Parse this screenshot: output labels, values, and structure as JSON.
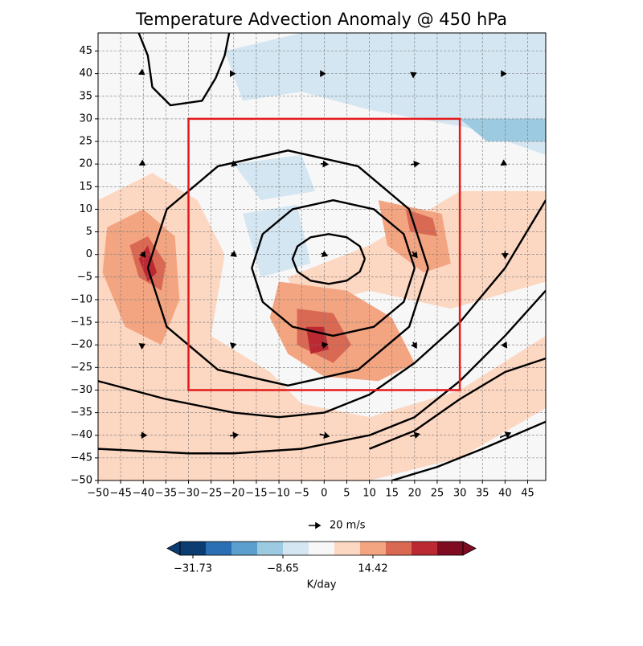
{
  "chart_data": {
    "type": "contour_map",
    "title": "Temperature Advection Anomaly @ 450 hPa",
    "xlim": [
      -50,
      49
    ],
    "ylim": [
      -50,
      49
    ],
    "xticks": [
      {
        "value": -50,
        "label": "−50"
      },
      {
        "value": -45,
        "label": "−45"
      },
      {
        "value": -40,
        "label": "−40"
      },
      {
        "value": -35,
        "label": "−35"
      },
      {
        "value": -30,
        "label": "−30"
      },
      {
        "value": -25,
        "label": "−25"
      },
      {
        "value": -20,
        "label": "−20"
      },
      {
        "value": -15,
        "label": "−15"
      },
      {
        "value": -10,
        "label": "−10"
      },
      {
        "value": -5,
        "label": "−5"
      },
      0,
      5,
      10,
      15,
      20,
      25,
      30,
      35,
      40,
      45
    ],
    "yticks": [
      {
        "value": -50,
        "label": "−50"
      },
      {
        "value": -45,
        "label": "−45"
      },
      {
        "value": -40,
        "label": "−40"
      },
      {
        "value": -35,
        "label": "−35"
      },
      {
        "value": -30,
        "label": "−30"
      },
      {
        "value": -25,
        "label": "−25"
      },
      {
        "value": -20,
        "label": "−20"
      },
      {
        "value": -15,
        "label": "−15"
      },
      {
        "value": -10,
        "label": "−10"
      },
      {
        "value": -5,
        "label": "−5"
      },
      0,
      5,
      10,
      15,
      20,
      25,
      30,
      35,
      40,
      45
    ],
    "grid": true,
    "background": "#f7f7f7",
    "patches": [
      {
        "color": "#fcd7c2",
        "x": [
          -50,
          -38,
          -28,
          -22,
          -25,
          -12,
          -5,
          10,
          30,
          49,
          49,
          30,
          10,
          -10,
          -30,
          -50
        ],
        "y": [
          12,
          18,
          12,
          0,
          -18,
          -26,
          -33,
          -36,
          -30,
          -18,
          -34,
          -45,
          -50,
          -50,
          -50,
          -50
        ]
      },
      {
        "color": "#fcd7c2",
        "x": [
          -8,
          10,
          30,
          49,
          49,
          28,
          10,
          -6
        ],
        "y": [
          -5,
          2,
          14,
          14,
          -6,
          -12,
          -8,
          -12
        ]
      },
      {
        "color": "#f3a582",
        "x": [
          -48,
          -40,
          -33,
          -32,
          -36,
          -44,
          -49
        ],
        "y": [
          6,
          10,
          4,
          -10,
          -20,
          -16,
          -4
        ]
      },
      {
        "color": "#da6954",
        "x": [
          -43,
          -39,
          -35,
          -36,
          -41
        ],
        "y": [
          2,
          4,
          -2,
          -8,
          -5
        ]
      },
      {
        "color": "#bb2a33",
        "x": [
          -41,
          -39,
          -37,
          -39
        ],
        "y": [
          -1,
          2,
          -4,
          -6
        ]
      },
      {
        "color": "#f3a582",
        "x": [
          -10,
          5,
          15,
          20,
          12,
          0,
          -8,
          -12
        ],
        "y": [
          -6,
          -8,
          -14,
          -24,
          -28,
          -27,
          -22,
          -14
        ]
      },
      {
        "color": "#da6954",
        "x": [
          -6,
          2,
          6,
          2,
          -6
        ],
        "y": [
          -12,
          -13,
          -20,
          -24,
          -20
        ]
      },
      {
        "color": "#bb2a33",
        "x": [
          -4,
          0,
          1,
          -3
        ],
        "y": [
          -16,
          -16,
          -21,
          -22
        ]
      },
      {
        "color": "#f3a582",
        "x": [
          12,
          26,
          28,
          22,
          14
        ],
        "y": [
          12,
          9,
          -2,
          -4,
          2
        ]
      },
      {
        "color": "#da6954",
        "x": [
          18,
          24,
          25,
          19
        ],
        "y": [
          10,
          8,
          4,
          5
        ]
      },
      {
        "color": "#d4e6f1",
        "x": [
          -22,
          -5,
          20,
          49,
          49,
          32,
          10,
          -5,
          -18
        ],
        "y": [
          45,
          49,
          49,
          49,
          22,
          28,
          32,
          36,
          34
        ]
      },
      {
        "color": "#d4e6f1",
        "x": [
          -20,
          -5,
          -2,
          -14
        ],
        "y": [
          20,
          22,
          14,
          12
        ]
      },
      {
        "color": "#d4e6f1",
        "x": [
          -18,
          -6,
          -3,
          -14
        ],
        "y": [
          9,
          11,
          -2,
          -5
        ]
      },
      {
        "color": "#9ccae1",
        "x": [
          30,
          49,
          49,
          36
        ],
        "y": [
          30,
          30,
          25,
          25
        ]
      }
    ],
    "contours": [
      {
        "x": [
          9,
          7.9,
          5,
          1,
          -3,
          -5.9,
          -7,
          -5.9,
          -3,
          1,
          5,
          7.9,
          9
        ],
        "y": [
          -1,
          1.8,
          3.8,
          4.5,
          3.8,
          1.8,
          -1,
          -3.8,
          -5.8,
          -6.5,
          -5.8,
          -3.8,
          -1
        ]
      },
      {
        "x": [
          20,
          17.6,
          11,
          2,
          -7,
          -13.6,
          -16,
          -13.6,
          -7,
          2,
          11,
          17.6,
          20
        ],
        "y": [
          -3,
          4.5,
          10,
          12,
          10,
          4.5,
          -3,
          -10.5,
          -16,
          -18,
          -16,
          -10.5,
          -3
        ]
      },
      {
        "x": [
          23,
          18.8,
          7.5,
          -8,
          -23.5,
          -34.8,
          -39,
          -34.8,
          -23.5,
          -8,
          7.5,
          18.8,
          23
        ],
        "y": [
          -3,
          10,
          19.5,
          23,
          19.5,
          10,
          -3,
          -16,
          -25.5,
          -29,
          -25.5,
          -16,
          -3
        ]
      },
      {
        "x": [
          -41,
          -39,
          -38,
          -34,
          -27,
          -24,
          -22,
          -21
        ],
        "y": [
          49,
          44,
          37,
          33,
          34,
          39,
          44,
          49
        ]
      },
      {
        "x": [
          -50,
          -35,
          -20,
          -10,
          0,
          10,
          20,
          30,
          40,
          49
        ],
        "y": [
          -28,
          -32,
          -35,
          -36,
          -35,
          -31,
          -24,
          -15,
          -3,
          12
        ]
      },
      {
        "x": [
          -50,
          -30,
          -20,
          -5,
          10,
          20,
          30,
          40,
          49
        ],
        "y": [
          -43,
          -44,
          -44,
          -43,
          -40,
          -36,
          -28,
          -18,
          -8
        ]
      },
      {
        "x": [
          10,
          20,
          30,
          40,
          49
        ],
        "y": [
          -43,
          -39,
          -32,
          -26,
          -23
        ]
      },
      {
        "x": [
          15,
          25,
          35,
          49
        ],
        "y": [
          -50,
          -47,
          -43,
          -37
        ]
      }
    ],
    "box": {
      "x": [
        -30,
        30
      ],
      "y": [
        -30,
        30
      ],
      "color": "#e41a1c"
    },
    "vectors": {
      "x": [
        -40,
        -40,
        -40,
        -40,
        -40,
        -20,
        -20,
        -20,
        -20,
        -20,
        0,
        0,
        0,
        0,
        0,
        20,
        20,
        20,
        20,
        20,
        40,
        40,
        40,
        40,
        40
      ],
      "y": [
        40,
        20,
        0,
        -20,
        -40,
        40,
        20,
        0,
        -20,
        -40,
        40,
        20,
        0,
        -20,
        -40,
        40,
        20,
        0,
        -20,
        -40,
        40,
        20,
        0,
        -20,
        -40
      ],
      "u": [
        3,
        5,
        6,
        4,
        10,
        3,
        10,
        8,
        6,
        14,
        2,
        12,
        10,
        10,
        16,
        4,
        14,
        8,
        6,
        16,
        2,
        4,
        0,
        4,
        18
      ],
      "v": [
        -2,
        -3,
        -8,
        2,
        0,
        0,
        -3,
        -6,
        2,
        2,
        0,
        -1,
        -4,
        2,
        -4,
        2,
        2,
        -10,
        -10,
        4,
        0,
        -2,
        -12,
        8,
        8
      ]
    },
    "quiver_key": {
      "label": "20 m/s",
      "u": 20
    },
    "colorbar": {
      "label": "K/day",
      "clim": [
        -35.03,
        37.5
      ],
      "colors": [
        "#0b3c72",
        "#2a6fb3",
        "#5a9fcd",
        "#9ccae1",
        "#d4e6f1",
        "#f7f7f7",
        "#fcd7c2",
        "#f3a582",
        "#da6954",
        "#bb2a33",
        "#7f0b22"
      ],
      "ticks": [
        {
          "value": -31.73,
          "label": "−31.73"
        },
        {
          "value": -8.65,
          "label": "−8.65"
        },
        14.42
      ]
    }
  }
}
